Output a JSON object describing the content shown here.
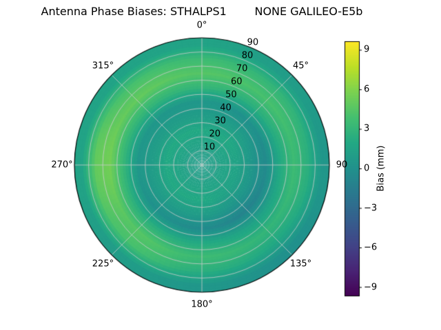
{
  "chart_data": {
    "type": "heatmap",
    "projection": "polar",
    "title": "Antenna Phase Biases: STHALPS1        NONE GALILEO-E5b",
    "angle_labels": [
      {
        "label": "0°",
        "angle": 0
      },
      {
        "label": "45°",
        "angle": 45
      },
      {
        "label": "90",
        "angle": 90
      },
      {
        "label": "135°",
        "angle": 135
      },
      {
        "label": "180°",
        "angle": 180
      },
      {
        "label": "225°",
        "angle": 225
      },
      {
        "label": "270°",
        "angle": 270
      },
      {
        "label": "315°",
        "angle": 315
      }
    ],
    "radial_tick_labels": [
      "10",
      "20",
      "30",
      "40",
      "50",
      "60",
      "70",
      "80",
      "90"
    ],
    "radial_tick_values": [
      10,
      20,
      30,
      40,
      50,
      60,
      70,
      80,
      90
    ],
    "radial_label_angle_deg": 22.5,
    "zenith_max": 90,
    "grid_on": true,
    "grid_color": "#cccccc",
    "colorbar": {
      "label": "Bias (mm)",
      "ticks": [
        {
          "label": "9",
          "value": 9
        },
        {
          "label": "6",
          "value": 6
        },
        {
          "label": "3",
          "value": 3
        },
        {
          "label": "0",
          "value": 0
        },
        {
          "label": "−3",
          "value": -3
        },
        {
          "label": "−6",
          "value": -6
        },
        {
          "label": "−9",
          "value": -9
        }
      ],
      "vmin": -9.65,
      "vmax": 9.65,
      "colormap": "viridis",
      "colormap_stops": [
        "#440154",
        "#482475",
        "#414487",
        "#355f8d",
        "#2a788e",
        "#21918c",
        "#22a884",
        "#44bf70",
        "#7ad151",
        "#bddf26",
        "#fde725"
      ]
    },
    "values_unit": "mm",
    "azimuth_deg": [
      0,
      45,
      90,
      135,
      180,
      225,
      270,
      315
    ],
    "zenith_deg": [
      5,
      15,
      25,
      35,
      45,
      55,
      65,
      75,
      85
    ],
    "values": [
      [
        1.0,
        1.5,
        2.0,
        1.0,
        0.5,
        3.0,
        4.5,
        3.5,
        1.5
      ],
      [
        1.0,
        1.5,
        2.0,
        1.0,
        0.0,
        2.5,
        4.0,
        3.0,
        1.0
      ],
      [
        1.0,
        1.5,
        1.5,
        0.5,
        -0.5,
        2.0,
        3.5,
        2.5,
        0.5
      ],
      [
        1.0,
        1.5,
        1.5,
        0.5,
        -1.0,
        1.5,
        3.0,
        2.0,
        0.0
      ],
      [
        1.0,
        1.5,
        2.0,
        1.0,
        -0.5,
        2.0,
        3.5,
        2.5,
        0.5
      ],
      [
        1.0,
        1.5,
        2.0,
        1.0,
        0.0,
        2.5,
        4.5,
        4.0,
        1.0
      ],
      [
        1.0,
        1.5,
        2.0,
        1.0,
        0.5,
        3.0,
        5.5,
        5.0,
        1.5
      ],
      [
        1.0,
        1.5,
        2.0,
        1.0,
        0.5,
        3.0,
        5.0,
        4.0,
        1.5
      ]
    ]
  }
}
